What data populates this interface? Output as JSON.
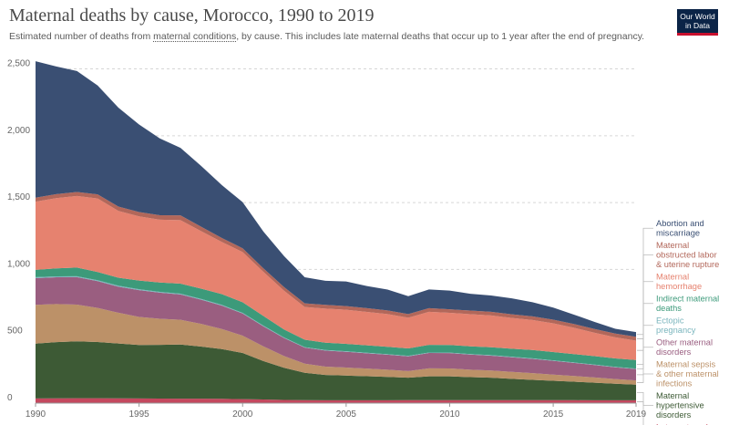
{
  "header": {
    "title": "Maternal deaths by cause, Morocco, 1990 to 2019",
    "subtitle_before": "Estimated number of deaths from ",
    "subtitle_link": "maternal conditions",
    "subtitle_after": ", by cause. This includes late maternal deaths that occur up to 1 year after the end of pregnancy.",
    "logo_line1": "Our World",
    "logo_line2": "in Data"
  },
  "chart_data": {
    "type": "area",
    "stacked": true,
    "title": "Maternal deaths by cause, Morocco, 1990 to 2019",
    "xlim": [
      1990,
      2019
    ],
    "ylim": [
      0,
      2500
    ],
    "x_ticks": [
      "1990",
      "1995",
      "2000",
      "2005",
      "2010",
      "2015",
      "2019"
    ],
    "y_ticks": [
      "0",
      "500",
      "1,000",
      "1,500",
      "2,000",
      "2,500"
    ],
    "grid": "horizontal dotted",
    "legend_position": "right",
    "x": [
      1990,
      1991,
      1992,
      1993,
      1994,
      1995,
      1996,
      1997,
      1998,
      1999,
      2000,
      2001,
      2002,
      2003,
      2004,
      2005,
      2006,
      2007,
      2008,
      2009,
      2010,
      2011,
      2012,
      2013,
      2014,
      2015,
      2016,
      2017,
      2018,
      2019
    ],
    "series": [
      {
        "name": "Late maternal deaths",
        "color": "#c4485e",
        "values": [
          35,
          36,
          37,
          37,
          36,
          35,
          34,
          33,
          33,
          32,
          30,
          27,
          24,
          22,
          21,
          21,
          21,
          21,
          22,
          22,
          22,
          22,
          22,
          22,
          22,
          22,
          22,
          21,
          21,
          21
        ]
      },
      {
        "name": "Maternal hypertensive disorders",
        "color": "#3d5a35",
        "values": [
          410,
          420,
          425,
          420,
          410,
          400,
          402,
          405,
          390,
          372,
          345,
          288,
          240,
          205,
          190,
          185,
          180,
          175,
          168,
          178,
          178,
          172,
          168,
          160,
          152,
          145,
          138,
          132,
          124,
          117
        ]
      },
      {
        "name": "Maternal sepsis & other maternal infections",
        "color": "#bc9168",
        "values": [
          290,
          285,
          275,
          255,
          230,
          210,
          195,
          185,
          170,
          150,
          130,
          110,
          88,
          68,
          62,
          60,
          57,
          54,
          50,
          60,
          59,
          56,
          54,
          52,
          50,
          46,
          43,
          39,
          35,
          32
        ]
      },
      {
        "name": "Other maternal disorders",
        "color": "#9a5e80",
        "values": [
          200,
          200,
          205,
          200,
          195,
          200,
          195,
          190,
          180,
          175,
          165,
          150,
          135,
          120,
          120,
          118,
          115,
          112,
          110,
          115,
          115,
          113,
          111,
          109,
          107,
          103,
          98,
          93,
          88,
          85
        ]
      },
      {
        "name": "Ectopic pregnancy",
        "color": "#7ab5bd",
        "values": [
          7,
          7,
          7,
          7,
          7,
          7,
          6,
          6,
          6,
          6,
          5,
          5,
          4,
          4,
          4,
          4,
          4,
          4,
          4,
          4,
          4,
          4,
          4,
          4,
          4,
          4,
          3,
          3,
          3,
          3
        ]
      },
      {
        "name": "Indirect maternal deaths",
        "color": "#3c9a7a",
        "values": [
          55,
          60,
          65,
          62,
          60,
          65,
          70,
          75,
          77,
          80,
          80,
          72,
          60,
          55,
          55,
          55,
          55,
          55,
          55,
          57,
          57,
          58,
          59,
          60,
          62,
          62,
          63,
          63,
          63,
          64
        ]
      },
      {
        "name": "Maternal hemorrhage",
        "color": "#e6826f",
        "values": [
          510,
          525,
          535,
          550,
          500,
          480,
          470,
          475,
          430,
          390,
          375,
          330,
          290,
          245,
          255,
          255,
          250,
          245,
          230,
          247,
          240,
          240,
          238,
          230,
          225,
          215,
          197,
          175,
          158,
          145
        ]
      },
      {
        "name": "Maternal obstructed labor & uterine rupture",
        "color": "#b2675a",
        "values": [
          30,
          30,
          30,
          30,
          32,
          32,
          33,
          35,
          33,
          30,
          28,
          27,
          27,
          27,
          28,
          28,
          28,
          27,
          27,
          27,
          27,
          27,
          27,
          27,
          27,
          27,
          28,
          28,
          28,
          29
        ]
      },
      {
        "name": "Abortion and miscarriage",
        "color": "#3a4f73",
        "values": [
          1020,
          955,
          905,
          815,
          740,
          655,
          575,
          505,
          455,
          395,
          345,
          275,
          232,
          195,
          180,
          184,
          166,
          156,
          134,
          140,
          140,
          126,
          122,
          120,
          106,
          91,
          70,
          53,
          36,
          35
        ]
      }
    ],
    "legend_order": [
      "Abortion and miscarriage",
      "Maternal obstructed labor & uterine rupture",
      "Maternal hemorrhage",
      "Indirect maternal deaths",
      "Ectopic pregnancy",
      "Other maternal disorders",
      "Maternal sepsis & other maternal infections",
      "Maternal hypertensive disorders",
      "Late maternal deaths"
    ],
    "legend_lines": [
      [
        "Abortion and",
        "miscarriage"
      ],
      [
        "Maternal",
        "obstructed labor",
        "& uterine rupture"
      ],
      [
        "Maternal",
        "hemorrhage"
      ],
      [
        "Indirect maternal",
        "deaths"
      ],
      [
        "Ectopic",
        "pregnancy"
      ],
      [
        "Other maternal",
        "disorders"
      ],
      [
        "Maternal sepsis",
        "& other maternal",
        "infections"
      ],
      [
        "Maternal",
        "hypertensive",
        "disorders"
      ],
      [
        "Late maternal",
        "deaths"
      ]
    ]
  }
}
